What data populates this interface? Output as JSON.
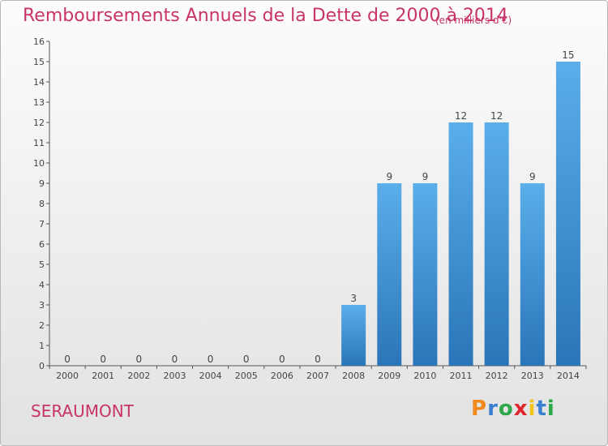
{
  "chart_data": {
    "type": "bar",
    "title": "Remboursements Annuels de la Dette de 2000 à 2014",
    "subtitle": "(en milliers d'€)",
    "categories": [
      "2000",
      "2001",
      "2002",
      "2003",
      "2004",
      "2005",
      "2006",
      "2007",
      "2008",
      "2009",
      "2010",
      "2011",
      "2012",
      "2013",
      "2014"
    ],
    "values": [
      0,
      0,
      0,
      0,
      0,
      0,
      0,
      0,
      3,
      9,
      9,
      12,
      12,
      9,
      15
    ],
    "ylim": [
      0,
      16
    ],
    "yticks": [
      0,
      1,
      2,
      3,
      4,
      5,
      6,
      7,
      8,
      9,
      10,
      11,
      12,
      13,
      14,
      15,
      16
    ],
    "xlabel": "",
    "ylabel": "",
    "grid": false,
    "bar_color": "#4a97d8"
  },
  "footer": {
    "commune": "SERAUMONT",
    "logo_letters": [
      "P",
      "r",
      "o",
      "x",
      "i",
      "t",
      "i"
    ],
    "logo_colors": [
      "#f08a1d",
      "#3a7fd0",
      "#2ea84a",
      "#e0262d",
      "#f2c518",
      "#3a7fd0",
      "#2ea84a"
    ]
  }
}
